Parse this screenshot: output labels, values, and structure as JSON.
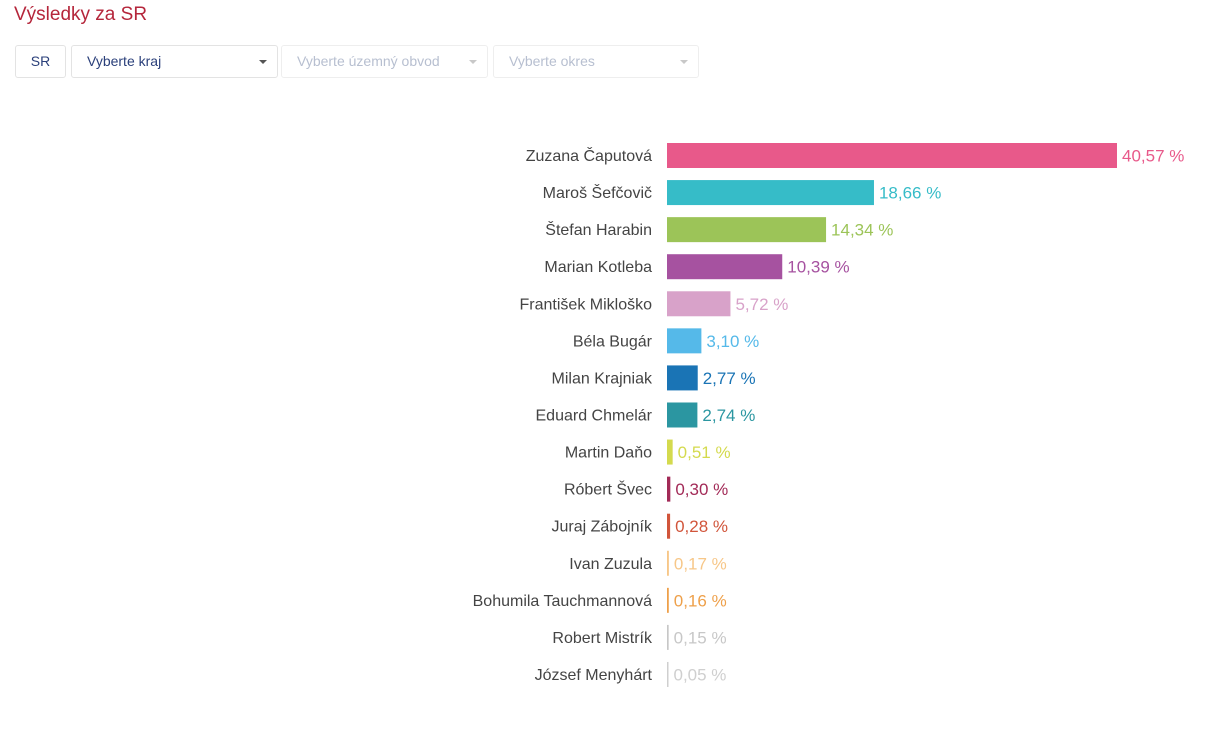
{
  "page": {
    "title": "Výsledky za SR"
  },
  "filters": {
    "sr_label": "SR",
    "kraj": {
      "value": "Vyberte kraj"
    },
    "obvod": {
      "value": "Vyberte územný obvod"
    },
    "okres": {
      "value": "Vyberte okres"
    }
  },
  "chart_data": {
    "type": "bar",
    "orientation": "horizontal",
    "categories": [
      "Zuzana Čaputová",
      "Maroš Šefčovič",
      "Štefan Harabin",
      "Marian Kotleba",
      "František Mikloško",
      "Béla Bugár",
      "Milan Krajniak",
      "Eduard Chmelár",
      "Martin Daňo",
      "Róbert Švec",
      "Juraj Zábojník",
      "Ivan Zuzula",
      "Bohumila Tauchmannová",
      "Robert Mistrík",
      "József Menyhárt"
    ],
    "values": [
      40.57,
      18.66,
      14.34,
      10.39,
      5.72,
      3.1,
      2.77,
      2.74,
      0.51,
      0.3,
      0.28,
      0.17,
      0.16,
      0.15,
      0.05
    ],
    "value_labels": [
      "40,57 %",
      "18,66 %",
      "14,34 %",
      "10,39 %",
      "5,72 %",
      "3,10 %",
      "2,77 %",
      "2,74 %",
      "0,51 %",
      "0,30 %",
      "0,28 %",
      "0,17 %",
      "0,16 %",
      "0,15 %",
      "0,05 %"
    ],
    "colors": [
      "#e8598a",
      "#36bcc8",
      "#9cc458",
      "#a652a0",
      "#d8a2c9",
      "#55b9e9",
      "#1a74b5",
      "#2b96a1",
      "#d4da4e",
      "#a22a57",
      "#d1553b",
      "#f7c788",
      "#eea04a",
      "#c7c7c7",
      "#cfcfcf"
    ],
    "xlim": [
      0,
      40.57
    ],
    "title": "",
    "xlabel": "",
    "ylabel": "",
    "grid": false,
    "legend": "none"
  }
}
